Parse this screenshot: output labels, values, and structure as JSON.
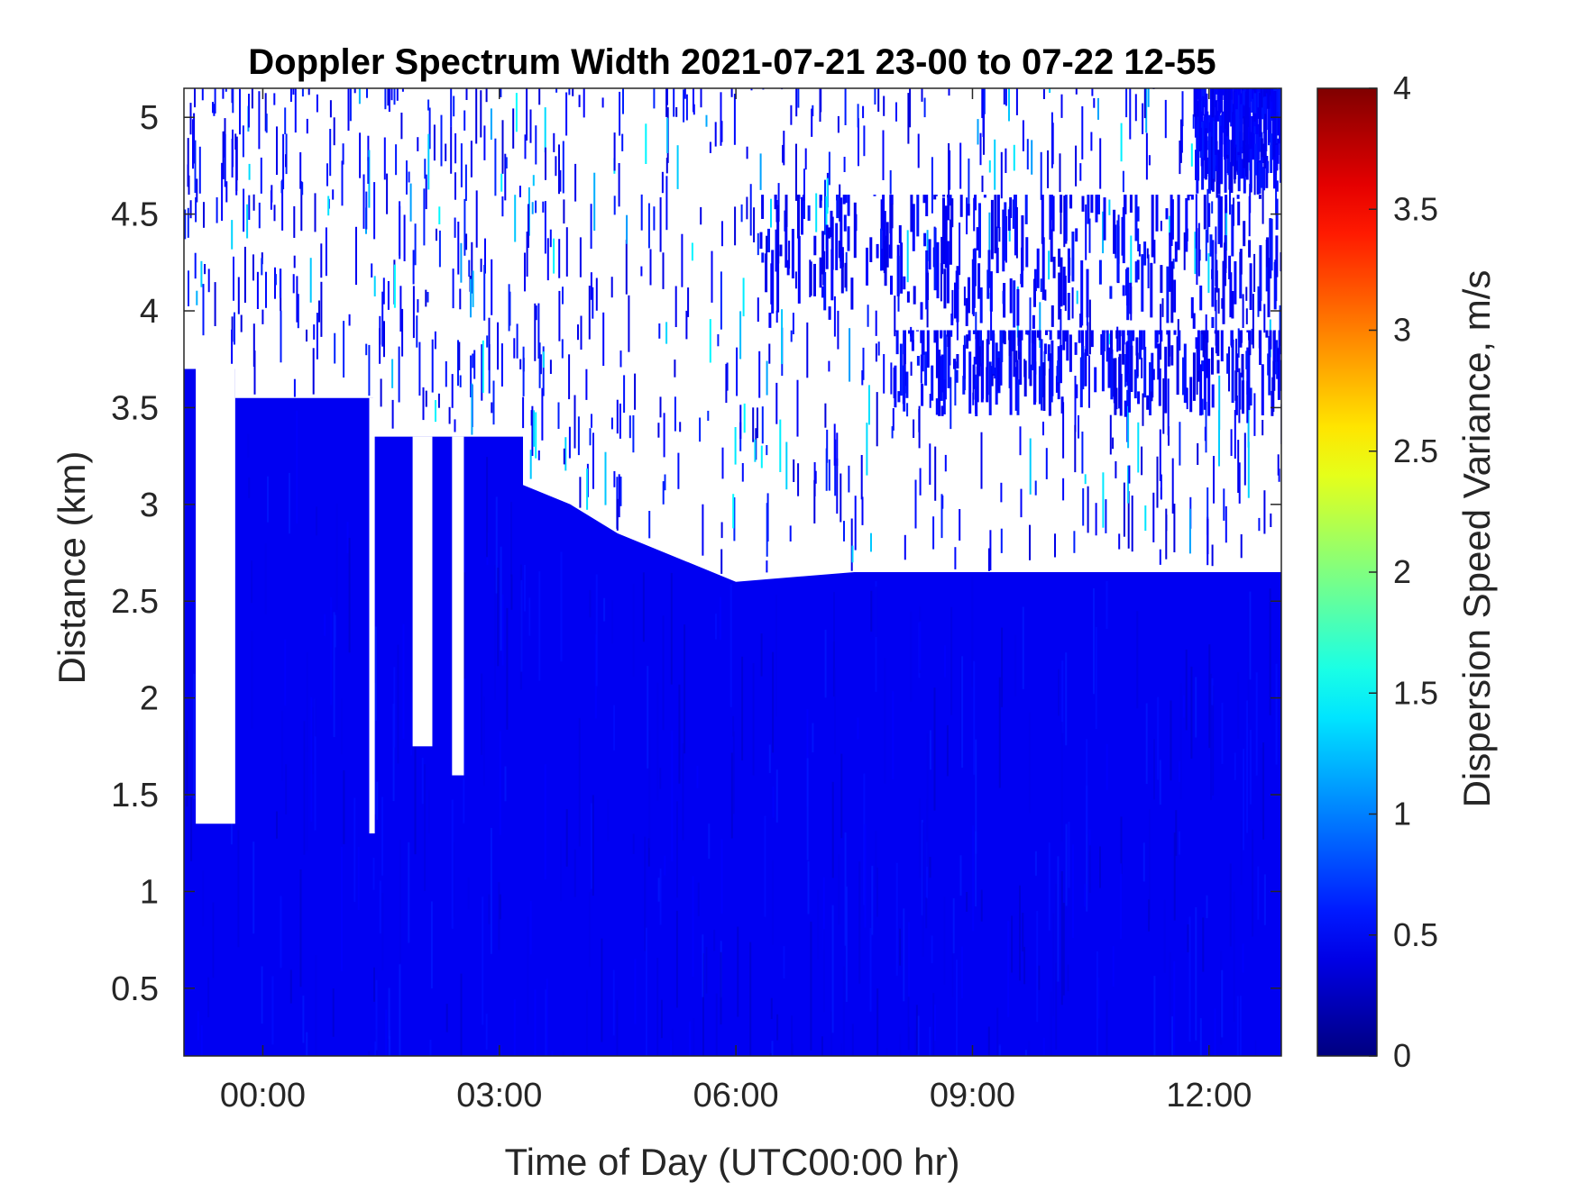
{
  "chart_data": {
    "type": "heatmap",
    "title": "Doppler Spectrum Width 2021-07-21 23-00 to 07-22 12-55",
    "xlabel": "Time of Day (UTC00:00 hr)",
    "ylabel": "Distance (km)",
    "colorbar_label": "Dispersion Speed Variance, m/s",
    "colormap": "jet",
    "x_ticks": [
      {
        "value": 0,
        "label": "00:00"
      },
      {
        "value": 3,
        "label": "03:00"
      },
      {
        "value": 6,
        "label": "06:00"
      },
      {
        "value": 9,
        "label": "09:00"
      },
      {
        "value": 12,
        "label": "12:00"
      }
    ],
    "xlim": [
      -1.0,
      12.917
    ],
    "y_ticks": [
      {
        "value": 0.5,
        "label": "0.5"
      },
      {
        "value": 1,
        "label": "1"
      },
      {
        "value": 1.5,
        "label": "1.5"
      },
      {
        "value": 2,
        "label": "2"
      },
      {
        "value": 2.5,
        "label": "2.5"
      },
      {
        "value": 3,
        "label": "3"
      },
      {
        "value": 3.5,
        "label": "3.5"
      },
      {
        "value": 4,
        "label": "4"
      },
      {
        "value": 4.5,
        "label": "4.5"
      },
      {
        "value": 5,
        "label": "5"
      }
    ],
    "ylim": [
      0.15,
      5.15
    ],
    "clim": [
      0,
      4
    ],
    "colorbar_ticks": [
      {
        "value": 0,
        "label": "0"
      },
      {
        "value": 0.5,
        "label": "0.5"
      },
      {
        "value": 1,
        "label": "1"
      },
      {
        "value": 1.5,
        "label": "1.5"
      },
      {
        "value": 2,
        "label": "2"
      },
      {
        "value": 2.5,
        "label": "2.5"
      },
      {
        "value": 3,
        "label": "3"
      },
      {
        "value": 3.5,
        "label": "3.5"
      },
      {
        "value": 4,
        "label": "4"
      }
    ],
    "background_value": 0.45,
    "no_data_color": "#ffffff",
    "no_data_upper_boundary_km": [
      {
        "t": -1.0,
        "km": 3.7
      },
      {
        "t": -0.35,
        "km": 3.7
      },
      {
        "t": -0.35,
        "km": 3.55
      },
      {
        "t": 1.4,
        "km": 3.55
      },
      {
        "t": 1.4,
        "km": 3.35
      },
      {
        "t": 3.3,
        "km": 3.35
      },
      {
        "t": 3.3,
        "km": 3.1
      },
      {
        "t": 3.9,
        "km": 3.0
      },
      {
        "t": 4.5,
        "km": 2.85
      },
      {
        "t": 6.0,
        "km": 2.6
      },
      {
        "t": 7.5,
        "km": 2.65
      },
      {
        "t": 9.0,
        "km": 2.65
      },
      {
        "t": 10.0,
        "km": 2.65
      },
      {
        "t": 12.917,
        "km": 2.65
      }
    ],
    "no_data_columns": [
      {
        "t_start": -0.85,
        "t_end": -0.35,
        "km_bottom": 1.35
      },
      {
        "t_start": 1.35,
        "t_end": 1.42,
        "km_bottom": 1.3
      },
      {
        "t_start": 1.9,
        "t_end": 2.15,
        "km_bottom": 1.75
      },
      {
        "t_start": 2.4,
        "t_end": 2.55,
        "km_bottom": 1.6
      }
    ],
    "data_bands_above": [
      {
        "t_start": 6.3,
        "t_end": 12.917,
        "km_bottom": 3.9,
        "km_top": 4.6
      },
      {
        "t_start": 11.8,
        "t_end": 12.917,
        "km_bottom": 4.6,
        "km_top": 5.15
      },
      {
        "t_start": 8.0,
        "t_end": 12.917,
        "km_bottom": 3.45,
        "km_top": 3.9
      }
    ]
  }
}
